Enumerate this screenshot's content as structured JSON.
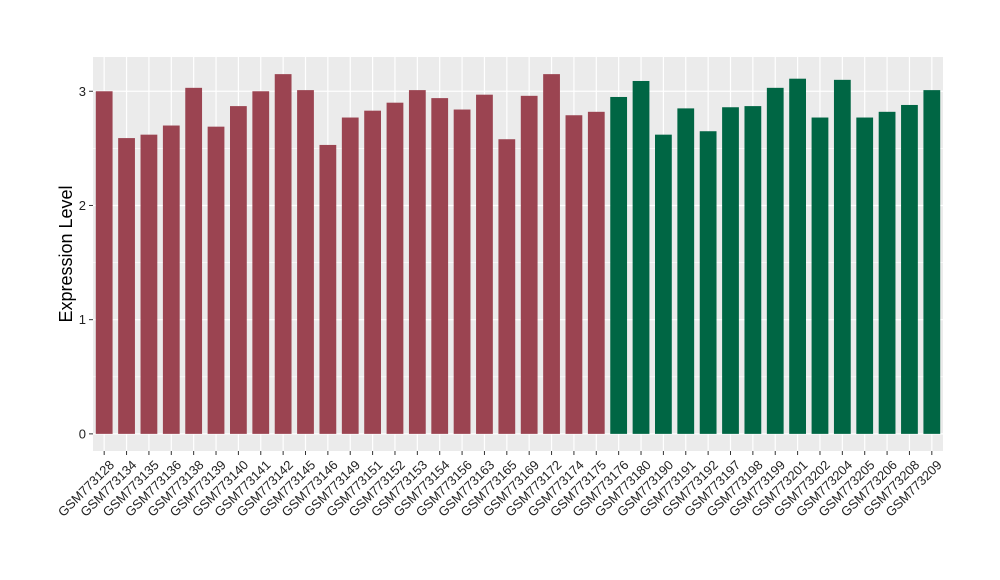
{
  "chart_data": {
    "type": "bar",
    "ylabel": "Expression Level",
    "xlabel": "",
    "ylim": [
      -0.15,
      3.3
    ],
    "yticks": [
      0,
      1,
      2,
      3
    ],
    "grid": true,
    "colors": {
      "group1": "#9b4451",
      "group2": "#006644",
      "panel": "#ebebeb",
      "grid": "#ffffff"
    },
    "categories": [
      "GSM773128",
      "GSM773134",
      "GSM773135",
      "GSM773136",
      "GSM773138",
      "GSM773139",
      "GSM773140",
      "GSM773141",
      "GSM773142",
      "GSM773145",
      "GSM773146",
      "GSM773149",
      "GSM773151",
      "GSM773152",
      "GSM773153",
      "GSM773154",
      "GSM773156",
      "GSM773163",
      "GSM773165",
      "GSM773169",
      "GSM773172",
      "GSM773174",
      "GSM773175",
      "GSM773176",
      "GSM773180",
      "GSM773190",
      "GSM773191",
      "GSM773192",
      "GSM773197",
      "GSM773198",
      "GSM773199",
      "GSM773201",
      "GSM773202",
      "GSM773204",
      "GSM773205",
      "GSM773206",
      "GSM773208",
      "GSM773209"
    ],
    "values": [
      3.0,
      2.59,
      2.62,
      2.7,
      3.03,
      2.69,
      2.87,
      3.0,
      3.15,
      3.01,
      2.53,
      2.77,
      2.83,
      2.9,
      3.01,
      2.94,
      2.84,
      2.97,
      2.58,
      2.96,
      3.15,
      2.79,
      2.82,
      2.95,
      3.09,
      2.62,
      2.85,
      2.65,
      2.86,
      2.87,
      3.03,
      3.11,
      2.77,
      3.1,
      2.77,
      2.82,
      2.88,
      3.01
    ],
    "groups": [
      1,
      1,
      1,
      1,
      1,
      1,
      1,
      1,
      1,
      1,
      1,
      1,
      1,
      1,
      1,
      1,
      1,
      1,
      1,
      1,
      1,
      1,
      1,
      2,
      2,
      2,
      2,
      2,
      2,
      2,
      2,
      2,
      2,
      2,
      2,
      2,
      2,
      2
    ]
  }
}
